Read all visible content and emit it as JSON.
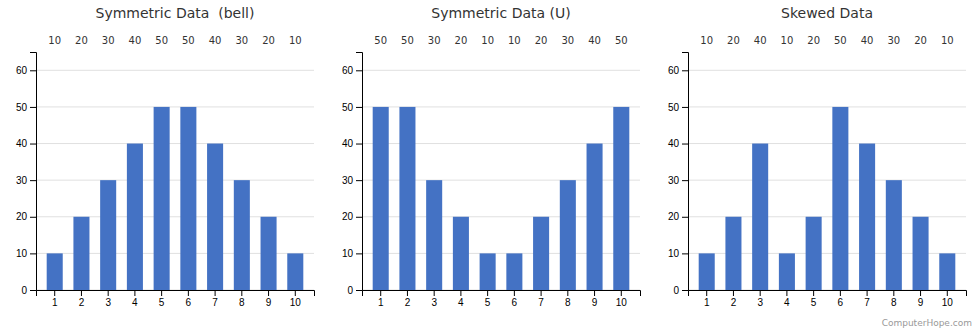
{
  "chart_data": [
    {
      "type": "bar",
      "title": "Symmetric Data  (bell)",
      "categories": [
        "1",
        "2",
        "3",
        "4",
        "5",
        "6",
        "7",
        "8",
        "9",
        "10"
      ],
      "values": [
        10,
        20,
        30,
        40,
        50,
        50,
        40,
        30,
        20,
        10
      ],
      "color": "#4472C4",
      "ylim": [
        0,
        65
      ],
      "yticks": [
        0,
        10,
        20,
        30,
        40,
        50,
        60
      ],
      "grid": true,
      "data_labels": true
    },
    {
      "type": "bar",
      "title": "Symmetric Data (U)",
      "categories": [
        "1",
        "2",
        "3",
        "4",
        "5",
        "6",
        "7",
        "8",
        "9",
        "10"
      ],
      "values": [
        50,
        50,
        30,
        20,
        10,
        10,
        20,
        30,
        40,
        50
      ],
      "color": "#4472C4",
      "ylim": [
        0,
        65
      ],
      "yticks": [
        0,
        10,
        20,
        30,
        40,
        50,
        60
      ],
      "grid": true,
      "data_labels": true
    },
    {
      "type": "bar",
      "title": "Skewed Data",
      "categories": [
        "1",
        "2",
        "3",
        "4",
        "5",
        "6",
        "7",
        "8",
        "9",
        "10"
      ],
      "values": [
        10,
        20,
        40,
        10,
        20,
        50,
        40,
        30,
        20,
        10
      ],
      "color": "#4472C4",
      "ylim": [
        0,
        65
      ],
      "yticks": [
        0,
        10,
        20,
        30,
        40,
        50,
        60
      ],
      "grid": true,
      "data_labels": true,
      "annotations": [
        "ComputerHope.com"
      ]
    }
  ]
}
